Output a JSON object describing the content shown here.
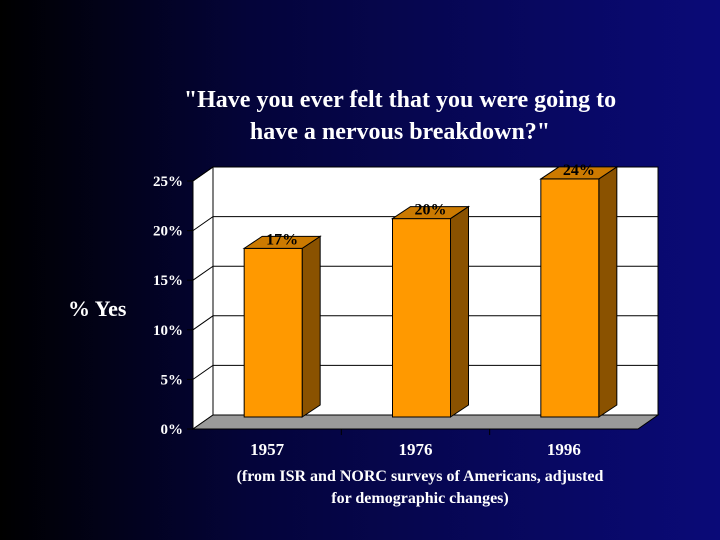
{
  "title_lines": [
    "\"Have you ever felt that you were going to",
    "have a nervous breakdown?\""
  ],
  "caption_lines": [
    "(from ISR and NORC surveys of Americans, adjusted",
    "for demographic changes)"
  ],
  "colors": {
    "bar_front": "#ff9900",
    "bar_top": "#cc7a00",
    "bar_side": "#8a5200",
    "plot_bg": "#ffffff",
    "floor": "#9a9a9a",
    "grid": "#000000"
  },
  "chart_data": {
    "type": "bar",
    "categories": [
      "1957",
      "1976",
      "1996"
    ],
    "values": [
      17,
      20,
      24
    ],
    "data_labels": [
      "17%",
      "20%",
      "24%"
    ],
    "ylabel": "% Yes",
    "yticks": [
      "0%",
      "5%",
      "10%",
      "15%",
      "20%",
      "25%"
    ],
    "ylim": [
      0,
      25
    ],
    "grid": true,
    "style": "3d-bar"
  }
}
